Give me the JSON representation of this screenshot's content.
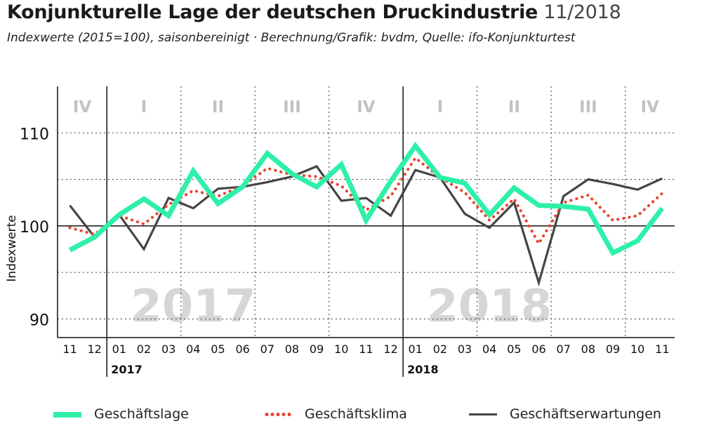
{
  "header": {
    "title_bold": "Konjunkturelle Lage der deutschen Druckindustrie",
    "title_date": "11/2018",
    "subtitle": "Indexwerte (2015=100), saisonbereinigt · Berechnung/Grafik: bvdm, Quelle: ifo-Konjunkturtest"
  },
  "chart_data": {
    "type": "line",
    "ylabel": "Indexwerte",
    "ylim": [
      88,
      115
    ],
    "yticks": [
      90,
      100,
      110
    ],
    "grid": "dotted horizontal every 5, solid at 100, dotted vertical per quarter",
    "categories": [
      "11",
      "12",
      "01",
      "02",
      "03",
      "04",
      "05",
      "06",
      "07",
      "08",
      "09",
      "10",
      "11",
      "12",
      "01",
      "02",
      "03",
      "04",
      "05",
      "06",
      "07",
      "08",
      "09",
      "10",
      "11"
    ],
    "years": [
      {
        "label": "2017",
        "start_index": 2
      },
      {
        "label": "2018",
        "start_index": 14
      }
    ],
    "watermarks": [
      {
        "label": "2017",
        "center_index": 5.0
      },
      {
        "label": "2018",
        "center_index": 17.0
      }
    ],
    "quarters": [
      {
        "label": "IV",
        "start": 0,
        "end": 2
      },
      {
        "label": "I",
        "start": 2,
        "end": 5
      },
      {
        "label": "II",
        "start": 5,
        "end": 8
      },
      {
        "label": "III",
        "start": 8,
        "end": 11
      },
      {
        "label": "IV",
        "start": 11,
        "end": 14
      },
      {
        "label": "I",
        "start": 14,
        "end": 17
      },
      {
        "label": "II",
        "start": 17,
        "end": 20
      },
      {
        "label": "III",
        "start": 20,
        "end": 23
      },
      {
        "label": "IV",
        "start": 23,
        "end": 25
      }
    ],
    "series": [
      {
        "name": "Geschäftslage",
        "color": "#2ef0a8",
        "style": "solid-thick",
        "values": [
          97.4,
          98.8,
          101.2,
          102.9,
          101.1,
          105.9,
          102.4,
          104.2,
          107.8,
          105.6,
          104.2,
          106.6,
          100.6,
          104.8,
          108.6,
          105.2,
          104.6,
          101.2,
          104.1,
          102.2,
          102.1,
          101.8,
          97.1,
          98.4,
          101.9
        ]
      },
      {
        "name": "Geschäftsklima",
        "color": "#e8442c",
        "style": "dotted",
        "values": [
          99.8,
          99.1,
          101.1,
          100.2,
          102.3,
          103.8,
          103.2,
          104.3,
          106.2,
          105.5,
          105.3,
          104.3,
          101.7,
          103.2,
          107.3,
          105.2,
          103.6,
          100.6,
          102.9,
          98.1,
          102.5,
          103.3,
          100.6,
          101.1,
          103.5
        ]
      },
      {
        "name": "Geschäftserwartungen",
        "color": "#454545",
        "style": "solid-thin",
        "values": [
          102.2,
          98.8,
          101.2,
          97.5,
          103.0,
          101.9,
          104.0,
          104.2,
          104.7,
          105.3,
          106.4,
          102.7,
          103.0,
          101.1,
          106.0,
          105.2,
          101.3,
          99.8,
          102.5,
          93.9,
          103.2,
          105.0,
          104.5,
          103.9,
          105.1
        ]
      }
    ]
  }
}
